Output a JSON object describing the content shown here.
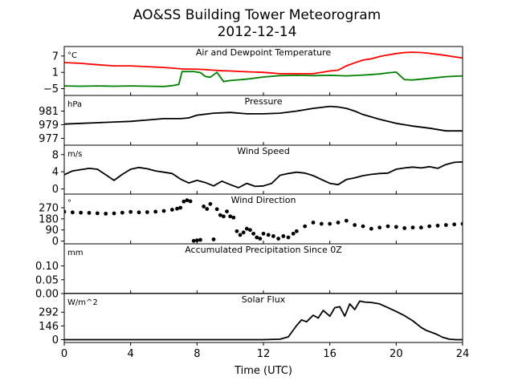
{
  "title": {
    "line1": "AO&SS Building Tower Meteorogram",
    "line2": "2012-12-14"
  },
  "xlabel": "Time (UTC)",
  "xlim": [
    0,
    24
  ],
  "xticks": [
    0,
    4,
    8,
    12,
    16,
    20,
    24
  ],
  "chart_data": [
    {
      "type": "line",
      "title": "Air and Dewpoint Temperature",
      "unit": "°C",
      "ylim": [
        -7.5,
        10.5
      ],
      "yticks": [
        -5,
        1,
        7
      ],
      "ytick_labels": [
        "−5",
        "1",
        "7"
      ],
      "series": [
        {
          "color": "#ff0000",
          "x": [
            0,
            1,
            2,
            3,
            4,
            5,
            6,
            6.8,
            7.2,
            7.8,
            8.5,
            9,
            9.5,
            10,
            11,
            12,
            13,
            14,
            15,
            16,
            16.5,
            17,
            17.5,
            18,
            18.5,
            19,
            19.5,
            20,
            20.5,
            21,
            21.5,
            22,
            22.5,
            23,
            23.5,
            24
          ],
          "y": [
            4.6,
            4.3,
            3.8,
            3.4,
            3.4,
            3.1,
            2.8,
            2.4,
            2.2,
            2.2,
            2.0,
            1.8,
            1.6,
            1.5,
            1.2,
            1.0,
            0.5,
            0.5,
            0.5,
            1.5,
            1.8,
            3.4,
            4.5,
            5.5,
            6.0,
            6.8,
            7.4,
            7.9,
            8.3,
            8.4,
            8.3,
            8.0,
            7.6,
            7.2,
            6.7,
            6.3
          ]
        },
        {
          "color": "#008000",
          "x": [
            0,
            1,
            2,
            3,
            4,
            5,
            6,
            6.5,
            6.9,
            7.1,
            7.8,
            8.2,
            8.5,
            8.8,
            9.2,
            9.6,
            10,
            11,
            12,
            13,
            14,
            15,
            16,
            17,
            18,
            19,
            19.5,
            20,
            20.5,
            21,
            22,
            23,
            24
          ],
          "y": [
            -4.0,
            -4.1,
            -4.0,
            -4.1,
            -4.0,
            -4.1,
            -4.2,
            -3.9,
            -3.5,
            1.3,
            1.3,
            0.9,
            -0.5,
            -0.8,
            1.0,
            -2.4,
            -2.0,
            -1.5,
            -0.7,
            -0.2,
            -0.1,
            -0.2,
            -0.1,
            -0.3,
            0.0,
            0.4,
            0.8,
            1.1,
            -1.7,
            -1.8,
            -1.2,
            -0.6,
            -0.3
          ]
        }
      ]
    },
    {
      "type": "line",
      "title": "Pressure",
      "unit": "hPa",
      "ylim": [
        976.0,
        983.3
      ],
      "yticks": [
        977,
        979,
        981
      ],
      "ytick_labels": [
        "977",
        "979",
        "981"
      ],
      "series": [
        {
          "color": "#000000",
          "x": [
            0,
            1,
            2,
            3,
            4,
            5,
            6,
            7,
            7.5,
            8,
            9,
            10,
            11,
            12,
            13,
            14,
            15,
            16,
            16.5,
            17,
            17.5,
            18,
            19,
            20,
            21,
            22,
            23,
            24
          ],
          "y": [
            979.1,
            979.2,
            979.3,
            979.4,
            979.5,
            979.7,
            979.9,
            979.9,
            980.0,
            980.4,
            980.7,
            980.8,
            980.6,
            980.6,
            980.7,
            981.0,
            981.4,
            981.7,
            981.6,
            981.4,
            981.0,
            980.5,
            979.8,
            979.2,
            978.8,
            978.5,
            978.1,
            978.1
          ]
        }
      ]
    },
    {
      "type": "line",
      "title": "Wind Speed",
      "unit": "m/s",
      "ylim": [
        -1.2,
        10.2
      ],
      "yticks": [
        0,
        4,
        8
      ],
      "ytick_labels": [
        "0",
        "4",
        "8"
      ],
      "series": [
        {
          "color": "#000000",
          "x": [
            0,
            0.5,
            1,
            1.5,
            2,
            2.5,
            3,
            3.5,
            4,
            4.5,
            5,
            5.5,
            6,
            6.5,
            7,
            7.5,
            8,
            8.5,
            9,
            9.5,
            10,
            10.5,
            11,
            11.5,
            12,
            12.5,
            13,
            13.5,
            14,
            14.5,
            15,
            15.5,
            16,
            16.5,
            17,
            17.5,
            18,
            18.5,
            19,
            19.5,
            20,
            20.5,
            21,
            21.5,
            22,
            22.5,
            23,
            23.5,
            24
          ],
          "y": [
            3.3,
            4.2,
            4.5,
            4.8,
            4.6,
            3.3,
            2.0,
            3.4,
            4.6,
            5.0,
            4.7,
            4.2,
            3.9,
            3.6,
            2.3,
            1.4,
            2.0,
            1.5,
            0.7,
            1.8,
            1.0,
            0.3,
            1.3,
            0.6,
            0.7,
            1.3,
            3.2,
            3.6,
            3.9,
            3.7,
            3.1,
            2.2,
            1.3,
            1.0,
            2.2,
            2.6,
            3.1,
            3.4,
            3.6,
            3.7,
            4.6,
            4.9,
            5.1,
            4.9,
            5.2,
            4.8,
            5.7,
            6.2,
            6.3
          ]
        }
      ]
    },
    {
      "type": "scatter",
      "title": "Wind Direction",
      "unit": "°",
      "ylim": [
        -22,
        380
      ],
      "yticks": [
        0,
        90,
        180,
        270
      ],
      "ytick_labels": [
        "0",
        "90",
        "180",
        "270"
      ],
      "series": [
        {
          "color": "#000000",
          "x": [
            0,
            0.5,
            1,
            1.5,
            2,
            2.5,
            3,
            3.5,
            4,
            4.5,
            5,
            5.5,
            6,
            6.5,
            6.8,
            7.0,
            7.2,
            7.4,
            7.6,
            7.8,
            8.0,
            8.2,
            8.4,
            8.6,
            8.8,
            9.0,
            9.2,
            9.4,
            9.6,
            9.8,
            10.0,
            10.2,
            10.4,
            10.6,
            10.8,
            11.0,
            11.2,
            11.4,
            11.6,
            11.8,
            12.0,
            12.3,
            12.6,
            12.9,
            13.2,
            13.5,
            13.8,
            14.0,
            14.5,
            15,
            15.5,
            16,
            16.5,
            17,
            17.5,
            18,
            18.5,
            19,
            19.5,
            20,
            20.5,
            21,
            21.5,
            22,
            22.5,
            23,
            23.5,
            24
          ],
          "y": [
            238,
            232,
            230,
            228,
            225,
            222,
            224,
            230,
            236,
            232,
            234,
            238,
            244,
            254,
            262,
            270,
            320,
            330,
            322,
            2,
            6,
            10,
            280,
            260,
            300,
            14,
            258,
            210,
            200,
            240,
            200,
            190,
            80,
            50,
            70,
            100,
            90,
            60,
            30,
            20,
            60,
            50,
            40,
            20,
            40,
            30,
            60,
            80,
            120,
            150,
            140,
            140,
            150,
            165,
            130,
            120,
            100,
            110,
            120,
            115,
            105,
            110,
            110,
            120,
            125,
            130,
            135,
            140
          ]
        }
      ]
    },
    {
      "type": "line",
      "title": "Accumulated Precipitation Since 0Z",
      "unit": "mm",
      "ylim": [
        0,
        0.18
      ],
      "yticks": [
        0.0,
        0.05,
        0.1
      ],
      "ytick_labels": [
        "0.00",
        "0.05",
        "0.10"
      ],
      "series": [
        {
          "color": "#000000",
          "x": [
            0,
            24
          ],
          "y": [
            0.0,
            0.0
          ]
        }
      ]
    },
    {
      "type": "line",
      "title": "Solar Flux",
      "unit": "W/m^2",
      "ylim": [
        -30,
        490
      ],
      "yticks": [
        0,
        146,
        292
      ],
      "ytick_labels": [
        "0",
        "146",
        "292"
      ],
      "series": [
        {
          "color": "#000000",
          "x": [
            0,
            12,
            13,
            13.5,
            14,
            14.3,
            14.6,
            15,
            15.3,
            15.6,
            16,
            16.3,
            16.6,
            16.9,
            17.2,
            17.5,
            17.8,
            18.1,
            18.5,
            19,
            19.5,
            20,
            20.5,
            21,
            21.5,
            21.8,
            22.1,
            22.4,
            22.8,
            23.2,
            23.6,
            24
          ],
          "y": [
            0,
            0,
            5,
            30,
            150,
            210,
            190,
            260,
            230,
            310,
            250,
            340,
            350,
            250,
            380,
            320,
            410,
            400,
            395,
            380,
            340,
            300,
            255,
            200,
            130,
            100,
            80,
            60,
            25,
            5,
            0,
            0
          ]
        }
      ]
    }
  ]
}
